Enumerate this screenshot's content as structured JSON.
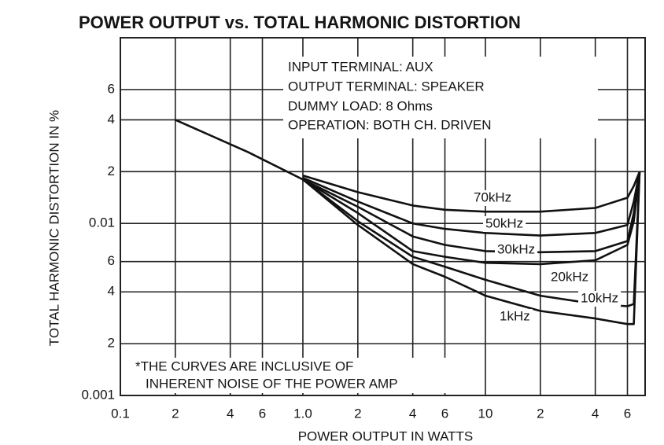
{
  "chart_data": {
    "type": "line",
    "title": "POWER OUTPUT vs. TOTAL HARMONIC DISTORTION",
    "x_label": "POWER OUTPUT IN WATTS",
    "y_label": "TOTAL HARMONIC DISTORTION IN %",
    "annotations": [
      "INPUT TERMINAL: AUX",
      "OUTPUT TERMINAL: SPEAKER",
      "DUMMY LOAD: 8 Ohms",
      "OPERATION: BOTH CH. DRIVEN"
    ],
    "footnote": [
      "*THE CURVES ARE INCLUSIVE OF",
      "INHERENT NOISE OF THE POWER AMP"
    ],
    "x_log": true,
    "y_log": true,
    "grid": true,
    "xlim": [
      0.1,
      75
    ],
    "ylim": [
      0.001,
      0.12
    ],
    "xticks": [
      0.1,
      {
        "value": 0.2,
        "label": "2"
      },
      {
        "value": 0.4,
        "label": "4"
      },
      {
        "value": 0.6,
        "label": "6"
      },
      {
        "value": 1,
        "label": "1.0"
      },
      {
        "value": 2,
        "label": "2"
      },
      {
        "value": 4,
        "label": "4"
      },
      {
        "value": 6,
        "label": "6"
      },
      10,
      {
        "value": 20,
        "label": "2"
      },
      {
        "value": 40,
        "label": "4"
      },
      {
        "value": 60,
        "label": "6"
      }
    ],
    "yticks": [
      0.001,
      {
        "value": 0.002,
        "label": "2"
      },
      {
        "value": 0.004,
        "label": "4"
      },
      {
        "value": 0.006,
        "label": "6"
      },
      0.01,
      {
        "value": 0.02,
        "label": "2"
      },
      {
        "value": 0.04,
        "label": "4"
      },
      {
        "value": 0.06,
        "label": "6"
      }
    ],
    "x": [
      0.2,
      0.5,
      1,
      2,
      4,
      6,
      10,
      20,
      40,
      60,
      65,
      70
    ],
    "series": [
      {
        "name": "1kHz",
        "color": "#111111",
        "values": [
          0.04,
          0.026,
          0.018,
          0.0098,
          0.0058,
          0.0049,
          0.0038,
          0.0031,
          0.0028,
          0.0026,
          0.0026,
          0.02
        ]
      },
      {
        "name": "10kHz",
        "color": "#111111",
        "values": [
          null,
          null,
          0.018,
          0.0103,
          0.0064,
          0.0056,
          0.0047,
          0.0038,
          0.0034,
          0.0033,
          0.0034,
          0.02
        ]
      },
      {
        "name": "20kHz",
        "color": "#111111",
        "values": [
          null,
          null,
          0.018,
          0.0115,
          0.0069,
          0.0064,
          0.0059,
          0.0058,
          0.0061,
          0.0075,
          0.0103,
          0.02
        ]
      },
      {
        "name": "30kHz",
        "color": "#111111",
        "values": [
          null,
          null,
          0.018,
          0.0125,
          0.0084,
          0.0075,
          0.0069,
          0.0068,
          0.0069,
          0.0079,
          0.0115,
          0.02
        ]
      },
      {
        "name": "50kHz",
        "color": "#111111",
        "values": [
          null,
          null,
          0.0184,
          0.0134,
          0.01,
          0.0093,
          0.0088,
          0.0085,
          0.0088,
          0.0098,
          0.0134,
          0.02
        ]
      },
      {
        "name": "70kHz",
        "color": "#111111",
        "values": [
          null,
          null,
          0.019,
          0.0152,
          0.0127,
          0.012,
          0.0117,
          0.0117,
          0.0123,
          0.0141,
          0.0165,
          0.02
        ]
      }
    ]
  }
}
